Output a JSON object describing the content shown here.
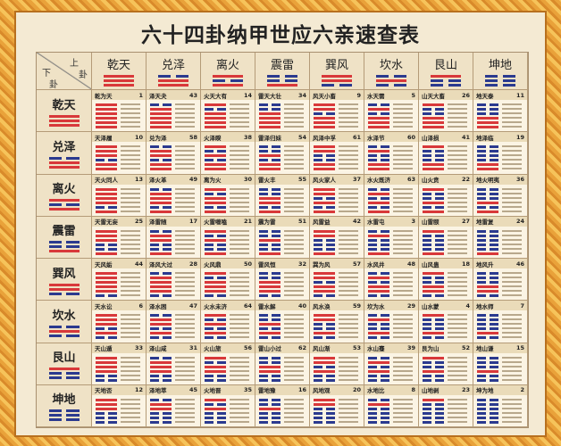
{
  "title": "六十四卦纳甲世应六亲速查表",
  "corner": {
    "upper": "上",
    "upper2": "卦",
    "lower": "下",
    "lower2": "卦"
  },
  "colors": {
    "yang": "#d8383a",
    "yin": "#2b3a8f"
  },
  "trigrams": [
    {
      "name": "乾天",
      "lines": [
        1,
        1,
        1
      ]
    },
    {
      "name": "兑泽",
      "lines": [
        1,
        1,
        0
      ]
    },
    {
      "name": "离火",
      "lines": [
        1,
        0,
        1
      ]
    },
    {
      "name": "震雷",
      "lines": [
        1,
        0,
        0
      ]
    },
    {
      "name": "巽风",
      "lines": [
        0,
        1,
        1
      ]
    },
    {
      "name": "坎水",
      "lines": [
        0,
        1,
        0
      ]
    },
    {
      "name": "艮山",
      "lines": [
        0,
        0,
        1
      ]
    },
    {
      "name": "坤地",
      "lines": [
        0,
        0,
        0
      ]
    }
  ],
  "rows": [
    [
      [
        "乾为天",
        "1"
      ],
      [
        "泽天夬",
        "43"
      ],
      [
        "火天大有",
        "14"
      ],
      [
        "雷天大壮",
        "34"
      ],
      [
        "风天小畜",
        "9"
      ],
      [
        "水天需",
        "5"
      ],
      [
        "山天大畜",
        "26"
      ],
      [
        "地天泰",
        "11"
      ]
    ],
    [
      [
        "天泽履",
        "10"
      ],
      [
        "兑为泽",
        "58"
      ],
      [
        "火泽睽",
        "38"
      ],
      [
        "雷泽归妹",
        "54"
      ],
      [
        "风泽中孚",
        "61"
      ],
      [
        "水泽节",
        "60"
      ],
      [
        "山泽损",
        "41"
      ],
      [
        "地泽临",
        "19"
      ]
    ],
    [
      [
        "天火同人",
        "13"
      ],
      [
        "泽火革",
        "49"
      ],
      [
        "离为火",
        "30"
      ],
      [
        "雷火丰",
        "55"
      ],
      [
        "风火家人",
        "37"
      ],
      [
        "水火既济",
        "63"
      ],
      [
        "山火贲",
        "22"
      ],
      [
        "地火明夷",
        "36"
      ]
    ],
    [
      [
        "天雷无妄",
        "25"
      ],
      [
        "泽雷随",
        "17"
      ],
      [
        "火雷噬嗑",
        "21"
      ],
      [
        "震为雷",
        "51"
      ],
      [
        "风雷益",
        "42"
      ],
      [
        "水雷屯",
        "3"
      ],
      [
        "山雷颐",
        "27"
      ],
      [
        "地雷复",
        "24"
      ]
    ],
    [
      [
        "天风姤",
        "44"
      ],
      [
        "泽风大过",
        "28"
      ],
      [
        "火风鼎",
        "50"
      ],
      [
        "雷风恒",
        "32"
      ],
      [
        "巽为风",
        "57"
      ],
      [
        "水风井",
        "48"
      ],
      [
        "山风蛊",
        "18"
      ],
      [
        "地风升",
        "46"
      ]
    ],
    [
      [
        "天水讼",
        "6"
      ],
      [
        "泽水困",
        "47"
      ],
      [
        "火水未济",
        "64"
      ],
      [
        "雷水解",
        "40"
      ],
      [
        "风水涣",
        "59"
      ],
      [
        "坎为水",
        "29"
      ],
      [
        "山水蒙",
        "4"
      ],
      [
        "地水师",
        "7"
      ]
    ],
    [
      [
        "天山遁",
        "33"
      ],
      [
        "泽山咸",
        "31"
      ],
      [
        "火山旅",
        "56"
      ],
      [
        "雷山小过",
        "62"
      ],
      [
        "风山渐",
        "53"
      ],
      [
        "水山蹇",
        "39"
      ],
      [
        "艮为山",
        "52"
      ],
      [
        "地山谦",
        "15"
      ]
    ],
    [
      [
        "天地否",
        "12"
      ],
      [
        "泽地萃",
        "45"
      ],
      [
        "火地晋",
        "35"
      ],
      [
        "雷地豫",
        "16"
      ],
      [
        "风地观",
        "20"
      ],
      [
        "水地比",
        "8"
      ],
      [
        "山地剥",
        "23"
      ],
      [
        "坤为地",
        "2"
      ]
    ]
  ]
}
